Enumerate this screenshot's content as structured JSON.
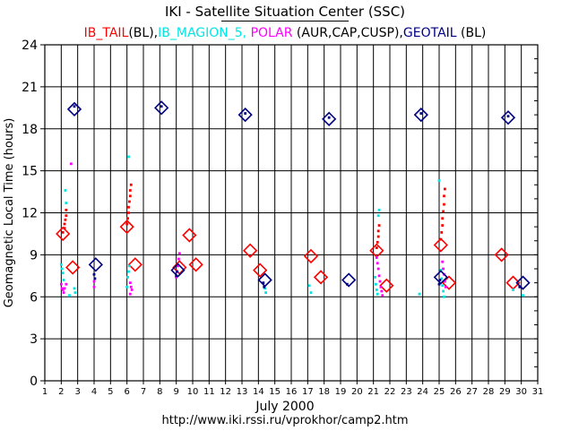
{
  "header": {
    "title": "IKI - Satellite Situation Center (SSC)"
  },
  "legend": {
    "items": [
      {
        "text": "IB_TAIL",
        "color": "#ff0000"
      },
      {
        "text": "(BL),",
        "color": "#000000"
      },
      {
        "text": "IB_MAGION_5,",
        "color": "#00e5e5"
      },
      {
        "text": "POLAR",
        "color": "#ff00ff"
      },
      {
        "text": "(AUR,CAP,CUSP),",
        "color": "#000000"
      },
      {
        "text": "GEOTAIL",
        "color": "#000080"
      },
      {
        "text": "(BL)",
        "color": "#000000"
      }
    ]
  },
  "footer": {
    "month": "July   2000",
    "url": "http://www.iki.rssi.ru/vprokhor/camp2.htm"
  },
  "chart_data": {
    "type": "scatter",
    "xlabel": "",
    "ylabel": "Geomagnetic Local Time (hours)",
    "xlim": [
      1,
      31
    ],
    "ylim": [
      0,
      24
    ],
    "xticks": [
      "1",
      "2",
      "3",
      "4",
      "5",
      "6",
      "7",
      "8",
      "9",
      "10",
      "11",
      "12",
      "13",
      "14",
      "15",
      "16",
      "17",
      "18",
      "19",
      "20",
      "21",
      "22",
      "23",
      "24",
      "25",
      "26",
      "27",
      "28",
      "29",
      "30",
      "31"
    ],
    "yticks": [
      "0",
      "3",
      "6",
      "9",
      "12",
      "15",
      "18",
      "21",
      "24"
    ],
    "grid": true,
    "series": [
      {
        "name": "IB_TAIL",
        "color": "#ff0000",
        "marker": "points",
        "points": [
          [
            2.1,
            10.6
          ],
          [
            2.2,
            10.9
          ],
          [
            2.2,
            11.2
          ],
          [
            2.25,
            11.5
          ],
          [
            2.3,
            11.8
          ],
          [
            2.3,
            12.2
          ],
          [
            6.0,
            11.2
          ],
          [
            6.05,
            11.6
          ],
          [
            6.1,
            12.0
          ],
          [
            6.1,
            12.4
          ],
          [
            6.15,
            12.8
          ],
          [
            6.2,
            13.2
          ],
          [
            6.2,
            13.6
          ],
          [
            6.25,
            14.0
          ],
          [
            21.2,
            9.5
          ],
          [
            21.25,
            9.9
          ],
          [
            21.3,
            10.3
          ],
          [
            21.3,
            10.7
          ],
          [
            21.35,
            11.1
          ],
          [
            25.1,
            10.1
          ],
          [
            25.15,
            10.6
          ],
          [
            25.2,
            11.1
          ],
          [
            25.2,
            11.6
          ],
          [
            25.25,
            12.1
          ],
          [
            25.3,
            12.6
          ],
          [
            25.3,
            13.2
          ],
          [
            25.35,
            13.7
          ]
        ]
      },
      {
        "name": "IB_TAIL",
        "color": "#ff0000",
        "marker": "diamond",
        "points": [
          [
            2.1,
            10.5
          ],
          [
            2.7,
            8.1
          ],
          [
            6.0,
            11.0
          ],
          [
            6.5,
            8.3
          ],
          [
            9.2,
            8.1
          ],
          [
            9.8,
            10.4
          ],
          [
            10.2,
            8.3
          ],
          [
            13.5,
            9.3
          ],
          [
            14.1,
            7.9
          ],
          [
            17.2,
            8.9
          ],
          [
            17.8,
            7.4
          ],
          [
            21.2,
            9.3
          ],
          [
            21.8,
            6.8
          ],
          [
            25.1,
            9.7
          ],
          [
            25.6,
            7.0
          ],
          [
            28.8,
            9.0
          ],
          [
            29.5,
            7.0
          ]
        ]
      },
      {
        "name": "IB_MAGION_5",
        "color": "#00e5e5",
        "marker": "points",
        "points": [
          [
            2.0,
            8.3
          ],
          [
            2.05,
            8.0
          ],
          [
            2.1,
            7.7
          ],
          [
            2.15,
            7.2
          ],
          [
            2.25,
            13.6
          ],
          [
            2.3,
            12.7
          ],
          [
            2.5,
            6.1
          ],
          [
            2.8,
            6.6
          ],
          [
            2.85,
            6.3
          ],
          [
            6.0,
            6.7
          ],
          [
            6.05,
            7.4
          ],
          [
            6.1,
            7.8
          ],
          [
            6.15,
            8.2
          ],
          [
            6.1,
            16.0
          ],
          [
            14.4,
            6.6
          ],
          [
            14.45,
            6.3
          ],
          [
            17.1,
            6.8
          ],
          [
            17.2,
            6.3
          ],
          [
            21.1,
            7.4
          ],
          [
            21.15,
            6.9
          ],
          [
            21.2,
            6.5
          ],
          [
            21.25,
            6.2
          ],
          [
            21.3,
            11.8
          ],
          [
            21.35,
            12.2
          ],
          [
            23.8,
            6.2
          ],
          [
            25.0,
            14.3
          ],
          [
            25.1,
            7.9
          ],
          [
            25.15,
            7.3
          ],
          [
            25.2,
            6.8
          ],
          [
            25.25,
            6.4
          ],
          [
            25.3,
            6.0
          ],
          [
            29.5,
            6.5
          ],
          [
            30.1,
            6.1
          ]
        ]
      },
      {
        "name": "POLAR",
        "color": "#ff00ff",
        "marker": "points",
        "points": [
          [
            2.0,
            6.9
          ],
          [
            2.05,
            6.6
          ],
          [
            2.1,
            6.5
          ],
          [
            2.15,
            6.3
          ],
          [
            2.2,
            6.6
          ],
          [
            2.3,
            6.9
          ],
          [
            2.6,
            15.5
          ],
          [
            4.0,
            7.1
          ],
          [
            4.0,
            6.7
          ],
          [
            6.2,
            7.0
          ],
          [
            6.25,
            6.7
          ],
          [
            6.3,
            6.5
          ],
          [
            6.2,
            6.2
          ],
          [
            9.0,
            7.4
          ],
          [
            9.05,
            7.8
          ],
          [
            9.1,
            8.2
          ],
          [
            9.15,
            8.7
          ],
          [
            9.2,
            9.1
          ],
          [
            21.2,
            8.8
          ],
          [
            21.25,
            8.4
          ],
          [
            21.3,
            8.0
          ],
          [
            21.35,
            7.5
          ],
          [
            21.4,
            7.1
          ],
          [
            21.45,
            6.7
          ],
          [
            21.5,
            6.4
          ],
          [
            21.55,
            6.1
          ],
          [
            25.2,
            8.5
          ],
          [
            25.25,
            8.0
          ],
          [
            25.3,
            7.6
          ],
          [
            25.35,
            7.1
          ],
          [
            25.4,
            6.7
          ]
        ]
      },
      {
        "name": "GEOTAIL",
        "color": "#000080",
        "marker": "diamond",
        "points": [
          [
            2.8,
            19.4
          ],
          [
            4.1,
            8.3
          ],
          [
            8.1,
            19.5
          ],
          [
            9.1,
            7.9
          ],
          [
            13.2,
            19.0
          ],
          [
            14.4,
            7.2
          ],
          [
            18.3,
            18.7
          ],
          [
            19.5,
            7.2
          ],
          [
            23.9,
            19.0
          ],
          [
            25.1,
            7.4
          ],
          [
            29.2,
            18.8
          ],
          [
            30.1,
            7.0
          ]
        ]
      },
      {
        "name": "GEOTAIL",
        "color": "#000080",
        "marker": "points",
        "points": [
          [
            2.8,
            19.6
          ],
          [
            4.0,
            7.6
          ],
          [
            4.05,
            7.3
          ],
          [
            8.1,
            19.6
          ],
          [
            9.0,
            7.5
          ],
          [
            9.05,
            7.8
          ],
          [
            13.2,
            19.1
          ],
          [
            14.3,
            7.0
          ],
          [
            14.35,
            6.7
          ],
          [
            18.3,
            18.8
          ],
          [
            19.4,
            6.9
          ],
          [
            23.9,
            19.1
          ],
          [
            25.0,
            6.9
          ],
          [
            25.05,
            7.2
          ],
          [
            29.2,
            18.9
          ],
          [
            29.9,
            6.7
          ]
        ]
      }
    ]
  }
}
